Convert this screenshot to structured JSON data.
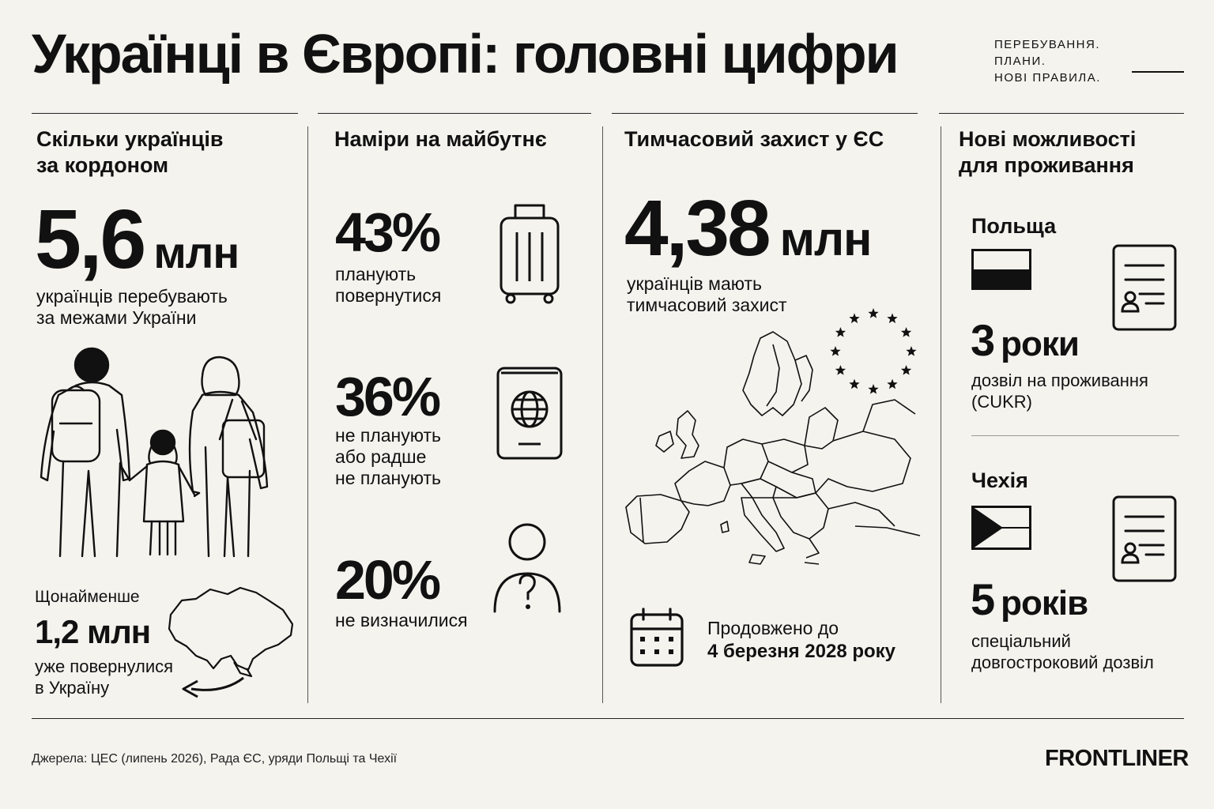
{
  "header": {
    "title": "Українці в Європі: головні цифри",
    "tagline": [
      "ПЕРЕБУВАННЯ.",
      "ПЛАНИ.",
      "НОВІ ПРАВИЛА."
    ]
  },
  "abroad": {
    "heading": [
      "Скільки українців",
      "за кордоном"
    ],
    "value": "5,6",
    "unit": "млн",
    "caption": [
      "українців перебувають",
      "за межами України"
    ],
    "returned_lead": "Щонайменше",
    "returned_value": "1,2 млн",
    "returned_caption": [
      "уже повернулися",
      "в Україну"
    ]
  },
  "intentions": {
    "heading": "Наміри на майбутнє",
    "items": [
      {
        "value": "43%",
        "caption": [
          "планують",
          "повернутися"
        ],
        "icon": "suitcase-icon"
      },
      {
        "value": "36%",
        "caption": [
          "не планують",
          "або радше",
          "не планують"
        ],
        "icon": "passport-icon"
      },
      {
        "value": "20%",
        "caption": [
          "не визначилися"
        ],
        "icon": "person-question-icon"
      }
    ]
  },
  "protection": {
    "heading": "Тимчасовий захист у ЄС",
    "value": "4,38",
    "unit": "млн",
    "caption": [
      "українців мають",
      "тимчасовий захист"
    ],
    "extended_lead": "Продовжено до",
    "extended_date": "4 березня 2028 року"
  },
  "residence": {
    "heading": [
      "Нові можливості",
      "для проживання"
    ],
    "countries": [
      {
        "name": "Польща",
        "number": "3",
        "unit": "роки",
        "caption": [
          "дозвіл на проживання",
          "(CUKR)"
        ],
        "flag": "poland-flag-icon"
      },
      {
        "name": "Чехія",
        "number": "5",
        "unit": "років",
        "caption": [
          "спеціальний",
          "довгостроковий дозвіл"
        ],
        "flag": "czech-flag-icon"
      }
    ]
  },
  "footer": {
    "sources": "Джерела: ЦЕС (липень 2026), Рада ЄС, уряди Польщі та Чехії",
    "brand": "FRONTLINER"
  }
}
